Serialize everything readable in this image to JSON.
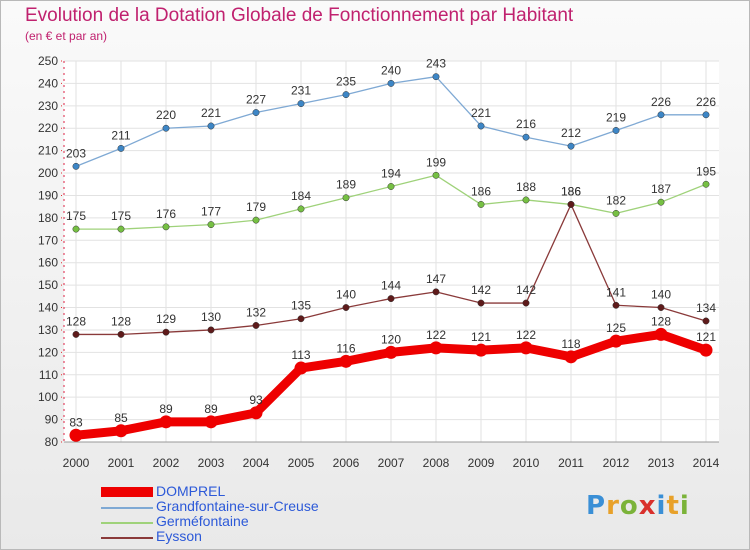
{
  "title": "Evolution de la Dotation Globale de Fonctionnement par Habitant",
  "subtitle": "(en € et par an)",
  "logo": {
    "text": "Proxiti",
    "colors": [
      "#3a8fd6",
      "#e8a12a",
      "#7bb339",
      "#d9302c",
      "#3a8fd6",
      "#e8a12a",
      "#7bb339"
    ]
  },
  "chart_data": {
    "type": "line",
    "x": [
      "2000",
      "2001",
      "2002",
      "2003",
      "2004",
      "2005",
      "2006",
      "2007",
      "2008",
      "2009",
      "2010",
      "2011",
      "2012",
      "2013",
      "2014"
    ],
    "ylim": [
      80,
      250
    ],
    "yticks": [
      80,
      90,
      100,
      110,
      120,
      130,
      140,
      150,
      160,
      170,
      180,
      190,
      200,
      210,
      220,
      230,
      240,
      250
    ],
    "grid": true,
    "legend_position": "bottom-left",
    "series": [
      {
        "name": "DOMPREL",
        "color": "#ee0000",
        "thick": true,
        "values": [
          83,
          85,
          89,
          89,
          93,
          113,
          116,
          120,
          122,
          121,
          122,
          118,
          125,
          128,
          121
        ]
      },
      {
        "name": "Grandfontaine-sur-Creuse",
        "color": "#7fa9d4",
        "marker": "#3d86c6",
        "values": [
          203,
          211,
          220,
          221,
          227,
          231,
          235,
          240,
          243,
          221,
          216,
          212,
          219,
          226,
          226
        ]
      },
      {
        "name": "Germéfontaine",
        "color": "#9fd27a",
        "marker": "#76c043",
        "values": [
          175,
          175,
          176,
          177,
          179,
          184,
          189,
          194,
          199,
          186,
          188,
          186,
          182,
          187,
          195
        ]
      },
      {
        "name": "Eysson",
        "color": "#8a3a3a",
        "marker": "#5e1a1a",
        "values": [
          128,
          128,
          129,
          130,
          132,
          135,
          140,
          144,
          147,
          142,
          142,
          186,
          141,
          140,
          134
        ]
      }
    ]
  }
}
